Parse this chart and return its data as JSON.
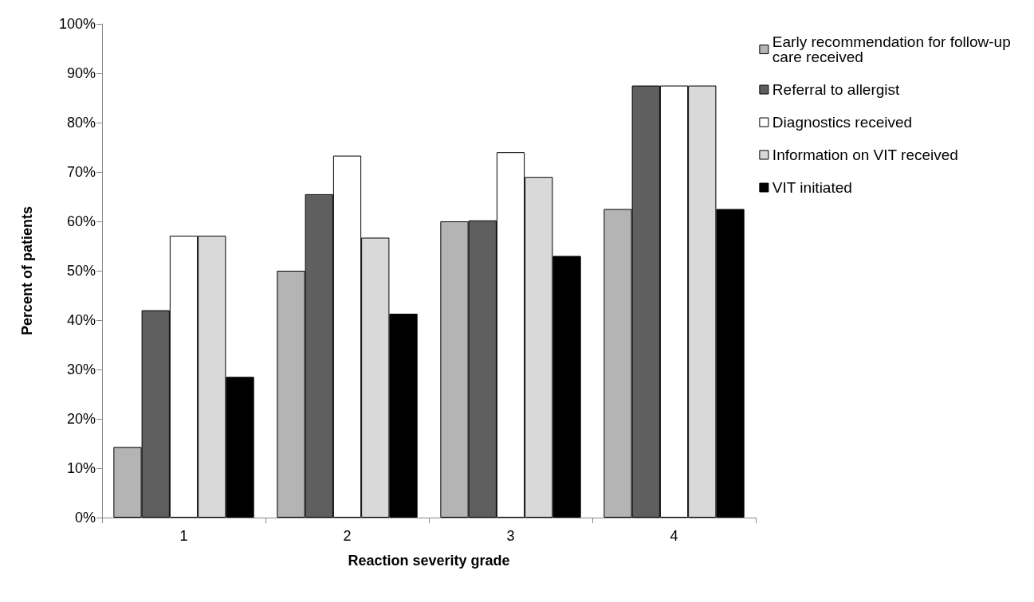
{
  "chart_data": {
    "type": "bar",
    "xlabel": "Reaction severity grade",
    "ylabel": "Percent of patients",
    "categories": [
      "1",
      "2",
      "3",
      "4"
    ],
    "series": [
      {
        "name": "Early recommendation for follow-up care received",
        "color": "#b4b4b4",
        "values": [
          14.3,
          50,
          60,
          62.5
        ]
      },
      {
        "name": "Referral to allergist",
        "color": "#5f5f5f",
        "values": [
          42,
          65.5,
          60.2,
          87.5
        ]
      },
      {
        "name": "Diagnostics received",
        "color": "#ffffff",
        "values": [
          57.1,
          73.3,
          74,
          87.5
        ]
      },
      {
        "name": "Information on VIT received",
        "color": "#d9d9d9",
        "values": [
          57.1,
          56.7,
          69,
          87.5
        ]
      },
      {
        "name": "VIT initiated",
        "color": "#000000",
        "values": [
          28.5,
          41.3,
          53,
          62.5
        ]
      }
    ],
    "ylim": [
      0,
      100
    ],
    "yticks": [
      {
        "value": 0,
        "label": "0%"
      },
      {
        "value": 10,
        "label": "10%"
      },
      {
        "value": 20,
        "label": "20%"
      },
      {
        "value": 30,
        "label": "30%"
      },
      {
        "value": 40,
        "label": "40%"
      },
      {
        "value": 50,
        "label": "50%"
      },
      {
        "value": 60,
        "label": "60%"
      },
      {
        "value": 70,
        "label": "70%"
      },
      {
        "value": 80,
        "label": "80%"
      },
      {
        "value": 90,
        "label": "90%"
      },
      {
        "value": 100,
        "label": "100%"
      }
    ],
    "grid": false,
    "legend": "right"
  }
}
